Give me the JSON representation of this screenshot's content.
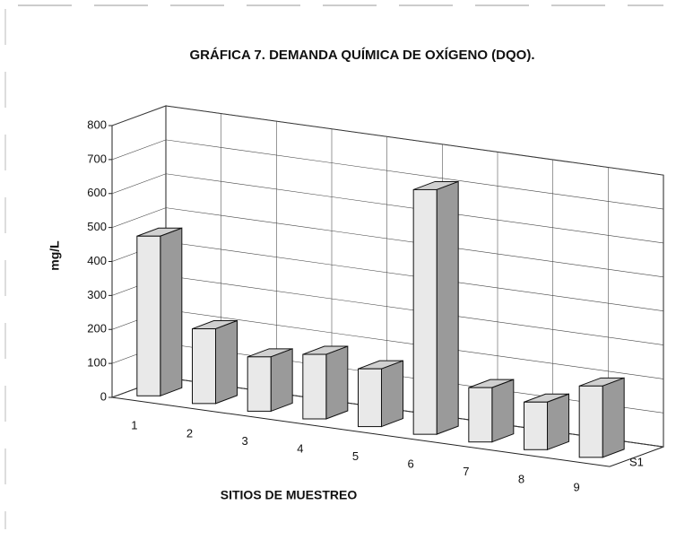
{
  "chart_data": {
    "type": "bar",
    "title": "GRÁFICA 7. DEMANDA QUÍMICA DE OXÍGENO (DQO).",
    "y_label": "mg/L",
    "x_label": "SITIOS DE MUESTREO",
    "categories": [
      "1",
      "2",
      "3",
      "4",
      "5",
      "6",
      "7",
      "8",
      "9"
    ],
    "series": [
      {
        "name": "S1",
        "color": "#e9e9e9",
        "values": [
          470,
          220,
          160,
          190,
          170,
          720,
          160,
          140,
          210
        ]
      }
    ],
    "ylim": [
      0,
      800
    ],
    "yticks": [
      0,
      100,
      200,
      300,
      400,
      500,
      600,
      700,
      800
    ],
    "grid": true
  }
}
